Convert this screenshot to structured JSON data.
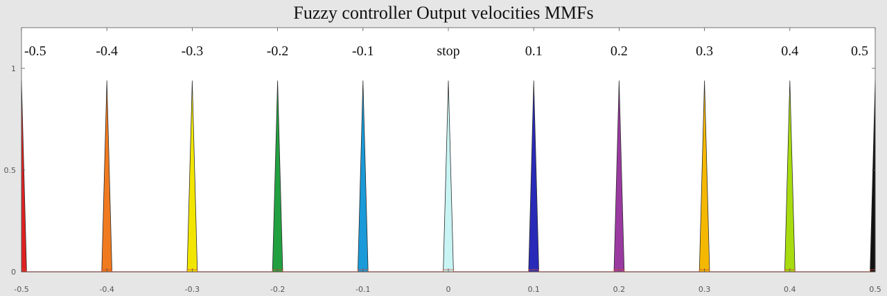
{
  "chart_data": {
    "type": "area",
    "title": "Fuzzy controller Output velocities MMFs",
    "xlabel": "",
    "ylabel": "",
    "xlim": [
      -0.5,
      0.5
    ],
    "ylim": [
      0,
      1.2
    ],
    "xticks": [
      "-0.5",
      "-0.4",
      "-0.3",
      "-0.2",
      "-0.1",
      "0",
      "0.1",
      "0.2",
      "0.3",
      "0.4",
      "0.5"
    ],
    "yticks": [
      "0",
      "0.5",
      "1"
    ],
    "grid": false,
    "peak": 0.94,
    "half_width": 0.006,
    "series": [
      {
        "name": "-0.5",
        "center": -0.5,
        "color": "#e02020"
      },
      {
        "name": "-0.4",
        "center": -0.4,
        "color": "#f07a20"
      },
      {
        "name": "-0.3",
        "center": -0.3,
        "color": "#f2e600"
      },
      {
        "name": "-0.2",
        "center": -0.2,
        "color": "#22a040"
      },
      {
        "name": "-0.1",
        "center": -0.1,
        "color": "#1a9ad8"
      },
      {
        "name": "stop",
        "center": 0.0,
        "color": "#c8f4f4"
      },
      {
        "name": "0.1",
        "center": 0.1,
        "color": "#2a2ab8"
      },
      {
        "name": "0.2",
        "center": 0.2,
        "color": "#9a3aa0"
      },
      {
        "name": "0.3",
        "center": 0.3,
        "color": "#f5b800"
      },
      {
        "name": "0.4",
        "center": 0.4,
        "color": "#a8dc10"
      },
      {
        "name": "0.5",
        "center": 0.5,
        "color": "#111111"
      }
    ]
  }
}
